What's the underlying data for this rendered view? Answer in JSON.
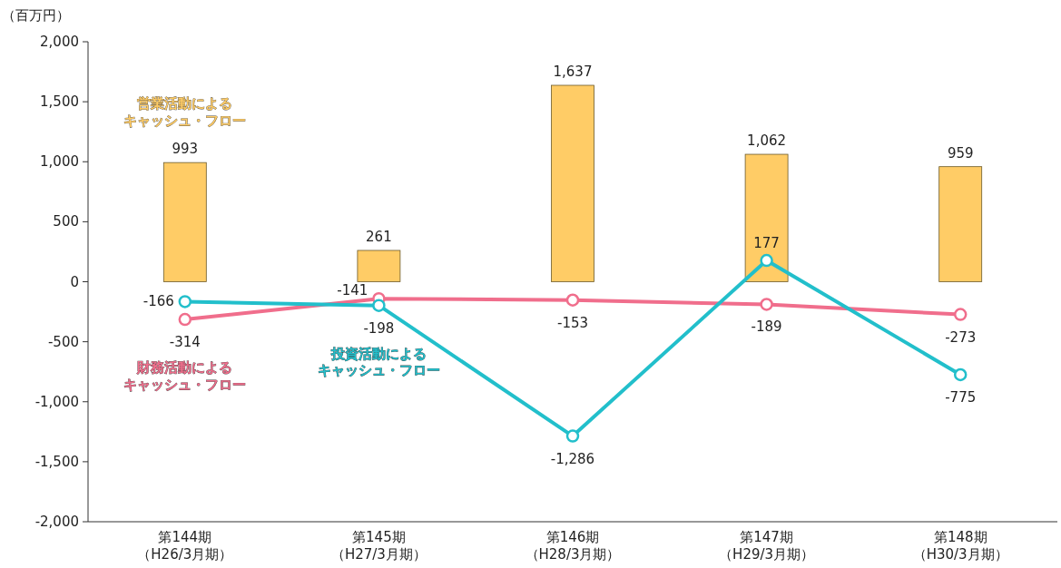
{
  "chart_data": {
    "type": "bar",
    "ylabel": "（百万円）",
    "categories": [
      "第144期（H26/3月期）",
      "第145期（H27/3月期）",
      "第146期（H28/3月期）",
      "第147期（H29/3月期）",
      "第148期（H30/3月期）"
    ],
    "series": [
      {
        "name": "営業活動によるキャッシュ・フロー",
        "color": "#ffcc66",
        "values": [
          993,
          261,
          1637,
          1062,
          959
        ],
        "value_labels": [
          "993",
          "261",
          "1,637",
          "1,062",
          "959"
        ]
      },
      {
        "name": "財務活動によるキャッシュ・フロー",
        "type": "line",
        "color": "#f06e8c",
        "values": [
          -314,
          -141,
          -153,
          -189,
          -273
        ],
        "value_labels": [
          "-314",
          "-141",
          "-153",
          "-189",
          "-273"
        ]
      },
      {
        "name": "投資活動によるキャッシュ・フロー",
        "type": "line",
        "color": "#22bfcb",
        "values": [
          -166,
          -198,
          -1286,
          177,
          -775
        ],
        "value_labels": [
          "-166",
          "-198",
          "-1,286",
          "177",
          "-775"
        ]
      }
    ],
    "ylim": [
      -2000,
      2000
    ],
    "yticks": [
      {
        "value": -2000,
        "label": "-2,000"
      },
      {
        "value": -1500,
        "label": "-1,500"
      },
      {
        "value": -1000,
        "label": "-1,000"
      },
      -500,
      0,
      500,
      {
        "value": 1000,
        "label": "1,000"
      },
      {
        "value": 1500,
        "label": "1,500"
      },
      {
        "value": 2000,
        "label": "2,000"
      }
    ],
    "legend": false,
    "marker": "circle",
    "line_style": "solid"
  }
}
